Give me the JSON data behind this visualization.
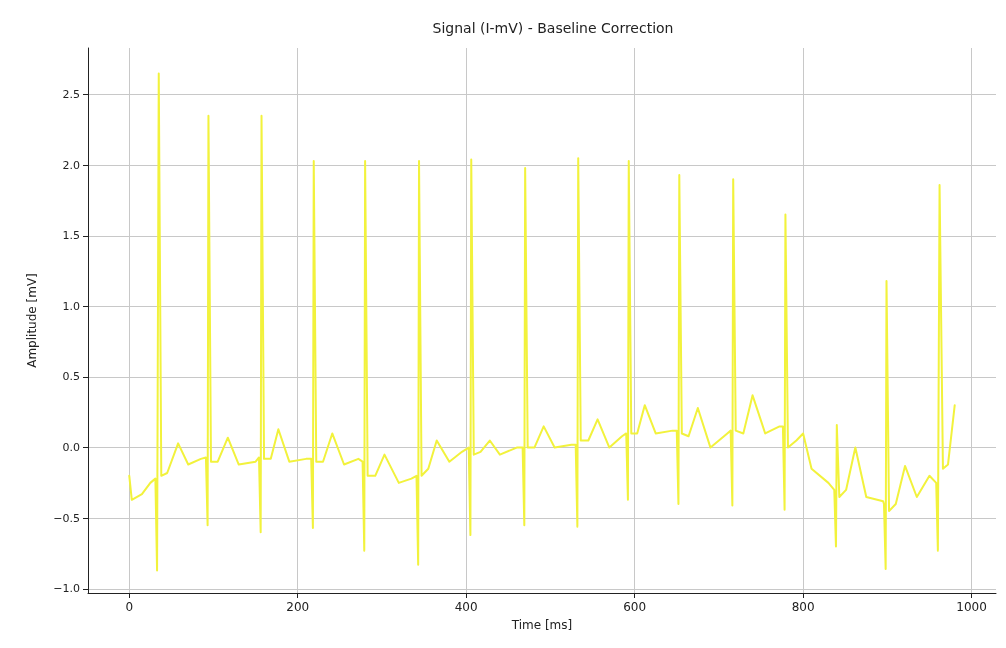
{
  "chart_data": {
    "type": "line",
    "title": "Signal (I-mV) - Baseline Correction",
    "xlabel": "Time [ms]",
    "ylabel": "Amplitude [mV]",
    "xlim": [
      -49,
      1029
    ],
    "ylim": [
      -1.03,
      2.83
    ],
    "xticks": [
      0,
      200,
      400,
      600,
      800,
      1000
    ],
    "yticks": [
      {
        "value": -1,
        "label": "−1.0"
      },
      {
        "value": -0.5,
        "label": "−0.5"
      },
      {
        "value": 0,
        "label": "0.0"
      },
      {
        "value": 0.5,
        "label": "0.5"
      },
      {
        "value": 1,
        "label": "1.0"
      },
      {
        "value": 1.5,
        "label": "1.5"
      },
      {
        "value": 2,
        "label": "2.0"
      },
      {
        "value": 2.5,
        "label": "2.5"
      }
    ],
    "grid": true,
    "marker": "none",
    "line_style": "solid",
    "series": [
      {
        "color": "#f2f23c",
        "x": [
          0,
          3,
          15,
          25,
          31,
          33,
          35,
          38,
          45,
          58,
          70,
          85,
          91,
          93,
          94,
          97,
          105,
          117,
          130,
          150,
          154,
          156,
          157,
          160,
          168,
          177,
          190,
          210,
          216,
          218,
          219,
          222,
          230,
          241,
          255,
          272,
          277,
          279,
          280,
          283,
          292,
          303,
          320,
          335,
          341,
          343,
          344,
          347,
          355,
          365,
          380,
          395,
          403,
          405,
          406,
          409,
          417,
          428,
          440,
          460,
          467,
          469,
          470,
          473,
          481,
          492,
          505,
          525,
          530,
          532,
          533,
          536,
          545,
          556,
          570,
          585,
          590,
          592,
          593,
          596,
          603,
          612,
          625,
          645,
          650,
          652,
          653,
          656,
          664,
          675,
          690,
          710,
          714,
          716,
          717,
          720,
          729,
          740,
          755,
          772,
          776,
          778,
          779,
          782,
          792,
          800,
          810,
          830,
          837,
          839,
          840,
          843,
          851,
          862,
          875,
          895,
          896,
          898,
          899,
          902,
          910,
          921,
          935,
          950,
          958,
          960,
          962,
          966,
          972,
          980
        ],
        "values": [
          -0.2,
          -0.37,
          -0.33,
          -0.25,
          -0.22,
          -0.87,
          2.65,
          -0.2,
          -0.18,
          0.03,
          -0.12,
          -0.08,
          -0.07,
          -0.55,
          2.35,
          -0.1,
          -0.1,
          0.07,
          -0.12,
          -0.1,
          -0.07,
          -0.6,
          2.35,
          -0.08,
          -0.08,
          0.13,
          -0.1,
          -0.08,
          -0.08,
          -0.57,
          2.03,
          -0.1,
          -0.1,
          0.1,
          -0.12,
          -0.08,
          -0.1,
          -0.73,
          2.03,
          -0.2,
          -0.2,
          -0.05,
          -0.25,
          -0.22,
          -0.2,
          -0.83,
          2.03,
          -0.2,
          -0.15,
          0.05,
          -0.1,
          -0.03,
          0.0,
          -0.62,
          2.04,
          -0.05,
          -0.03,
          0.05,
          -0.05,
          0.0,
          0.0,
          -0.55,
          1.98,
          0.0,
          0.0,
          0.15,
          0.0,
          0.02,
          0.02,
          -0.56,
          2.05,
          0.05,
          0.05,
          0.2,
          0.0,
          0.08,
          0.1,
          -0.37,
          2.03,
          0.1,
          0.1,
          0.3,
          0.1,
          0.12,
          0.12,
          -0.4,
          1.93,
          0.1,
          0.08,
          0.28,
          0.0,
          0.1,
          0.12,
          -0.41,
          1.9,
          0.12,
          0.1,
          0.37,
          0.1,
          0.15,
          0.15,
          -0.44,
          1.65,
          0.0,
          0.05,
          0.1,
          -0.15,
          -0.25,
          -0.3,
          -0.7,
          0.16,
          -0.35,
          -0.3,
          0.0,
          -0.35,
          -0.38,
          -0.4,
          -0.86,
          1.18,
          -0.45,
          -0.4,
          -0.13,
          -0.35,
          -0.2,
          -0.25,
          -0.73,
          1.86,
          -0.15,
          -0.12,
          0.3
        ]
      }
    ]
  }
}
